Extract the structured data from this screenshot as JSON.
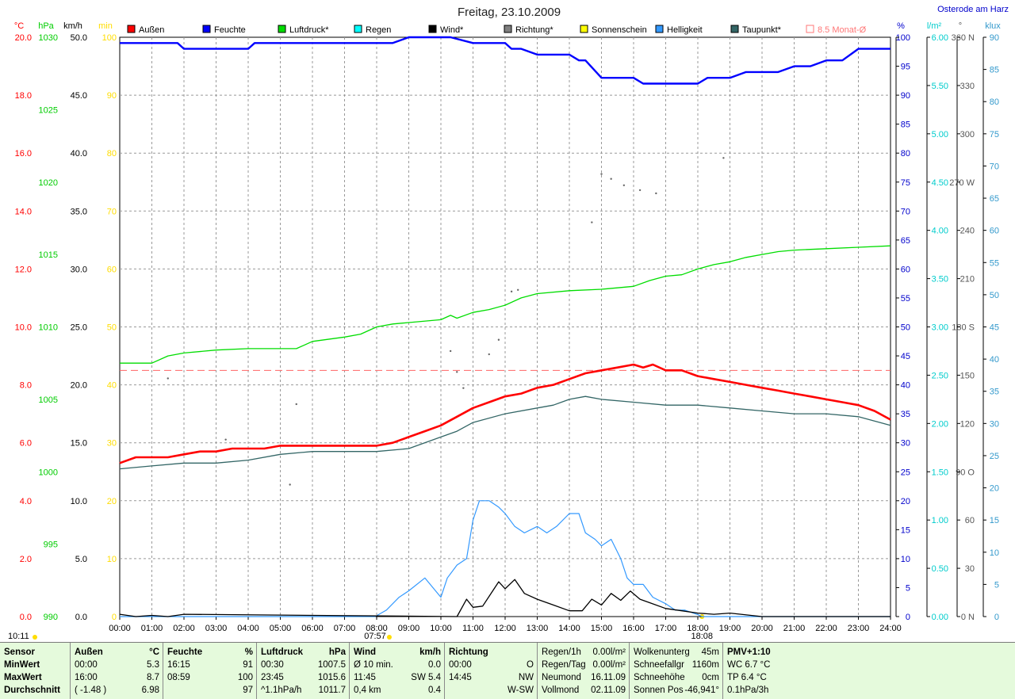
{
  "chart_data": {
    "type": "line",
    "title": "Freitag, 23.10.2009",
    "location": "Osterode am Harz",
    "legend": [
      {
        "label": "Außen",
        "color": "#ff0000"
      },
      {
        "label": "Feuchte",
        "color": "#0000ff"
      },
      {
        "label": "Luftdruck*",
        "color": "#00dd00"
      },
      {
        "label": "Regen",
        "color": "#00ffff"
      },
      {
        "label": "Wind*",
        "color": "#000000"
      },
      {
        "label": "Richtung*",
        "color": "#808080"
      },
      {
        "label": "Sonnenschein",
        "color": "#ffff00"
      },
      {
        "label": "Helligkeit",
        "color": "#3399ff"
      },
      {
        "label": "Taupunkt*",
        "color": "#336666"
      },
      {
        "label": "8.5 Monat-Ø",
        "color": "#ff7777"
      }
    ],
    "axes": {
      "temp": {
        "unit": "°C",
        "color": "#ff0000",
        "ticks": [
          "0.0",
          "2.0",
          "4.0",
          "6.0",
          "8.0",
          "10.0",
          "12.0",
          "14.0",
          "16.0",
          "18.0",
          "20.0"
        ]
      },
      "pressure": {
        "unit": "hPa",
        "color": "#00cc00",
        "ticks": [
          "990",
          "995",
          "1000",
          "1005",
          "1010",
          "1015",
          "1020",
          "1025",
          "1030"
        ]
      },
      "wind": {
        "unit": "km/h",
        "color": "#000000",
        "ticks": [
          "0.0",
          "5.0",
          "10.0",
          "15.0",
          "20.0",
          "25.0",
          "30.0",
          "35.0",
          "40.0",
          "45.0",
          "50.0"
        ]
      },
      "sun": {
        "unit": "min",
        "color": "#ffdd00",
        "ticks": [
          "0",
          "10",
          "20",
          "30",
          "40",
          "50",
          "60",
          "70",
          "80",
          "90",
          "100"
        ]
      },
      "humidity": {
        "unit": "%",
        "color": "#0000cc",
        "ticks": [
          "0",
          "5",
          "10",
          "15",
          "20",
          "25",
          "30",
          "35",
          "40",
          "45",
          "50",
          "55",
          "60",
          "65",
          "70",
          "75",
          "80",
          "85",
          "90",
          "95",
          "100"
        ]
      },
      "rain": {
        "unit": "l/m²",
        "color": "#00cccc",
        "ticks": [
          "0.00",
          "0.50",
          "1.00",
          "1.50",
          "2.00",
          "2.50",
          "3.00",
          "3.50",
          "4.00",
          "4.50",
          "5.00",
          "5.50",
          "6.00"
        ]
      },
      "direction": {
        "unit": "°",
        "color": "#555555",
        "ticks": [
          "0 N",
          "30",
          "60",
          "90 O",
          "120",
          "150",
          "180 S",
          "210",
          "240",
          "270 W",
          "300",
          "330",
          "360 N"
        ]
      },
      "lux": {
        "unit": "klux",
        "color": "#3399cc",
        "ticks": [
          "0",
          "5",
          "10",
          "15",
          "20",
          "25",
          "30",
          "35",
          "40",
          "45",
          "50",
          "55",
          "60",
          "65",
          "70",
          "75",
          "80",
          "85",
          "90"
        ]
      }
    },
    "x_ticks": [
      "00:00",
      "01:00",
      "02:00",
      "03:00",
      "04:00",
      "05:00",
      "06:00",
      "07:00",
      "08:00",
      "09:00",
      "10:00",
      "11:00",
      "12:00",
      "13:00",
      "14:00",
      "15:00",
      "16:00",
      "17:00",
      "18:00",
      "19:00",
      "20:00",
      "21:00",
      "22:00",
      "23:00",
      "24:00"
    ],
    "xlim": [
      0,
      24
    ],
    "monthly_avg_temp": 8.5,
    "sun_markers": [
      {
        "label": "10:11",
        "hour": -0.35
      },
      {
        "label": "07:57",
        "hour": 7.95
      },
      {
        "label": "18:08",
        "hour": 18.13
      }
    ],
    "series": [
      {
        "name": "Außen",
        "axis": "temp",
        "color": "#ff0000",
        "width": 2.6,
        "x": [
          0,
          0.5,
          1,
          1.5,
          2,
          2.5,
          3,
          3.5,
          4,
          4.5,
          5,
          6,
          7,
          8,
          8.5,
          9,
          9.5,
          10,
          10.5,
          11,
          11.5,
          12,
          12.5,
          13,
          13.5,
          14,
          14.5,
          15,
          15.5,
          16,
          16.3,
          16.6,
          17,
          17.5,
          18,
          18.5,
          19,
          19.5,
          20,
          20.5,
          21,
          21.5,
          22,
          22.5,
          23,
          23.5,
          24
        ],
        "y": [
          5.3,
          5.5,
          5.5,
          5.5,
          5.6,
          5.7,
          5.7,
          5.8,
          5.8,
          5.8,
          5.9,
          5.9,
          5.9,
          5.9,
          6.0,
          6.2,
          6.4,
          6.6,
          6.9,
          7.2,
          7.4,
          7.6,
          7.7,
          7.9,
          8.0,
          8.2,
          8.4,
          8.5,
          8.6,
          8.7,
          8.6,
          8.7,
          8.5,
          8.5,
          8.3,
          8.2,
          8.1,
          8.0,
          7.9,
          7.8,
          7.7,
          7.6,
          7.5,
          7.4,
          7.3,
          7.1,
          6.8
        ]
      },
      {
        "name": "Feuchte",
        "axis": "humidity",
        "color": "#0000ff",
        "width": 2.4,
        "x": [
          0,
          1,
          1.8,
          2,
          3,
          4,
          4.2,
          5,
          6,
          7,
          8,
          8.5,
          9,
          10,
          10.3,
          11,
          11.5,
          12,
          12.2,
          12.5,
          13,
          14,
          14.3,
          14.5,
          15,
          15.5,
          16,
          16.3,
          17,
          17.5,
          18,
          18.3,
          19,
          19.5,
          20,
          20.5,
          21,
          21.5,
          22,
          22.5,
          23,
          24
        ],
        "y": [
          99,
          99,
          99,
          98,
          98,
          98,
          99,
          99,
          99,
          99,
          99,
          99,
          100,
          100,
          100,
          99,
          99,
          99,
          98,
          98,
          97,
          97,
          96,
          96,
          93,
          93,
          93,
          92,
          92,
          92,
          92,
          93,
          93,
          94,
          94,
          94,
          95,
          95,
          96,
          96,
          98,
          98
        ]
      },
      {
        "name": "Luftdruck*",
        "axis": "pressure",
        "color": "#00dd00",
        "width": 1.3,
        "x": [
          0,
          1,
          1.5,
          2,
          3,
          4,
          5,
          5.5,
          6,
          7,
          7.5,
          8,
          8.5,
          9,
          10,
          10.3,
          10.5,
          11,
          11.5,
          12,
          12.5,
          13,
          14,
          15,
          16,
          16.5,
          17,
          17.5,
          18,
          18.5,
          19,
          19.5,
          20,
          20.5,
          21,
          22,
          23,
          24
        ],
        "y": [
          1007.5,
          1007.5,
          1008.0,
          1008.2,
          1008.4,
          1008.5,
          1008.5,
          1008.5,
          1009.0,
          1009.3,
          1009.5,
          1010.0,
          1010.2,
          1010.3,
          1010.5,
          1010.8,
          1010.6,
          1011.0,
          1011.2,
          1011.5,
          1012.0,
          1012.3,
          1012.5,
          1012.6,
          1012.8,
          1013.2,
          1013.5,
          1013.6,
          1014.0,
          1014.3,
          1014.5,
          1014.8,
          1015.0,
          1015.2,
          1015.3,
          1015.4,
          1015.5,
          1015.6
        ]
      },
      {
        "name": "Taupunkt*",
        "axis": "temp",
        "color": "#336666",
        "width": 1.3,
        "x": [
          0,
          1,
          2,
          3,
          4,
          5,
          6,
          7,
          8,
          9,
          10,
          10.5,
          11,
          12,
          13,
          13.5,
          14,
          14.5,
          15,
          16,
          17,
          18,
          19,
          20,
          21,
          22,
          23,
          24
        ],
        "y": [
          5.1,
          5.2,
          5.3,
          5.3,
          5.4,
          5.6,
          5.7,
          5.7,
          5.7,
          5.8,
          6.2,
          6.4,
          6.7,
          7.0,
          7.2,
          7.3,
          7.5,
          7.6,
          7.5,
          7.4,
          7.3,
          7.3,
          7.2,
          7.1,
          7.0,
          7.0,
          6.9,
          6.6
        ]
      },
      {
        "name": "Helligkeit",
        "axis": "lux",
        "color": "#3399ff",
        "width": 1.2,
        "x": [
          0,
          7.95,
          8.3,
          8.7,
          9,
          9.5,
          10,
          10.2,
          10.5,
          10.8,
          11,
          11.2,
          11.5,
          11.8,
          12,
          12.3,
          12.6,
          13,
          13.3,
          13.6,
          14,
          14.3,
          14.5,
          14.8,
          15,
          15.3,
          15.6,
          15.8,
          16,
          16.3,
          16.6,
          17,
          17.3,
          17.6,
          18,
          18.13,
          24
        ],
        "y": [
          0,
          0,
          1,
          3,
          4,
          6,
          3,
          6,
          8,
          9,
          15,
          18,
          18,
          17,
          16,
          14,
          13,
          14,
          13,
          14,
          16,
          16,
          13,
          12,
          11,
          12,
          9,
          6,
          5,
          5,
          3,
          2,
          1,
          1,
          0.3,
          0,
          0
        ]
      },
      {
        "name": "Wind*",
        "axis": "wind",
        "color": "#000000",
        "width": 1.3,
        "x": [
          0,
          0.5,
          1,
          1.5,
          2,
          10.5,
          10.8,
          11,
          11.3,
          11.8,
          12,
          12.3,
          12.6,
          13,
          13.5,
          14,
          14.4,
          14.7,
          15,
          15.3,
          15.6,
          15.9,
          16.2,
          16.5,
          17,
          17.5,
          18,
          18.5,
          19,
          20,
          24
        ],
        "y": [
          0.2,
          0,
          0.1,
          0,
          0.2,
          0,
          1.5,
          0.8,
          0.9,
          3.0,
          2.4,
          3.2,
          2.0,
          1.5,
          1.0,
          0.5,
          0.5,
          1.5,
          1.0,
          2.0,
          1.4,
          2.2,
          1.5,
          1.2,
          0.7,
          0.5,
          0.3,
          0.2,
          0.3,
          0,
          0
        ]
      },
      {
        "name": "Richtung*",
        "axis": "direction",
        "type": "scatter",
        "color": "#666666",
        "x": [
          1.5,
          3.3,
          5.3,
          5.5,
          10.3,
          10.5,
          10.7,
          11.5,
          11.8,
          12.2,
          12.4,
          14.7,
          15.0,
          15.3,
          15.7,
          16.2,
          16.7,
          18.8
        ],
        "y": [
          148,
          110,
          82,
          132,
          165,
          152,
          142,
          163,
          172,
          202,
          203,
          245,
          275,
          272,
          268,
          265,
          263,
          285
        ]
      }
    ]
  },
  "panel": {
    "sensor": {
      "title": "Sensor",
      "rows": [
        "MinWert",
        "MaxWert",
        "Durchschnitt"
      ]
    },
    "aussen": {
      "title": "Außen",
      "unit": "°C",
      "rows": [
        {
          "a": "00:00",
          "b": "5.3"
        },
        {
          "a": "16:00",
          "b": "8.7"
        },
        {
          "a": "( -1.48 )",
          "b": "6.98"
        }
      ]
    },
    "feuchte": {
      "title": "Feuchte",
      "unit": "%",
      "rows": [
        {
          "a": "16:15",
          "b": "91"
        },
        {
          "a": "08:59",
          "b": "100"
        },
        {
          "a": "",
          "b": "97"
        }
      ]
    },
    "luftdruck": {
      "title": "Luftdruck",
      "unit": "hPa",
      "rows": [
        {
          "a": "00:30",
          "b": "1007.5"
        },
        {
          "a": "23:45",
          "b": "1015.6"
        },
        {
          "a": "^1.1hPa/h",
          "b": "1011.7"
        }
      ]
    },
    "wind": {
      "title": "Wind",
      "unit": "km/h",
      "rows": [
        {
          "a": "Ø 10 min.",
          "b": "0.0"
        },
        {
          "a": "11:45",
          "b": "SW 5.4"
        },
        {
          "a": "0,4 km",
          "b": "0.4"
        }
      ]
    },
    "richtung": {
      "title": "Richtung",
      "rows": [
        {
          "a": "00:00",
          "b": "O"
        },
        {
          "a": "14:45",
          "b": "NW"
        },
        {
          "a": "",
          "b": "W-SW"
        }
      ]
    },
    "regen": {
      "rows": [
        {
          "a": "Regen/1h",
          "b": "0.00l/m²"
        },
        {
          "a": "Regen/Tag",
          "b": "0.00l/m²"
        },
        {
          "a": "Neumond",
          "b": "16.11.09"
        },
        {
          "a": "Vollmond",
          "b": "02.11.09"
        }
      ]
    },
    "wolken": {
      "rows": [
        {
          "a": "Wolkenunterg",
          "b": "45m"
        },
        {
          "a": "Schneefallgr",
          "b": "1160m"
        },
        {
          "a": "Schneehöhe",
          "b": "0cm"
        },
        {
          "a": "Sonnen Pos",
          "b": "-46,941°"
        }
      ]
    },
    "pmv": {
      "title": "PMV+1:10",
      "rows": [
        "WC 6.7 °C",
        "TP 6.4 °C",
        "0.1hPa/3h"
      ]
    }
  }
}
